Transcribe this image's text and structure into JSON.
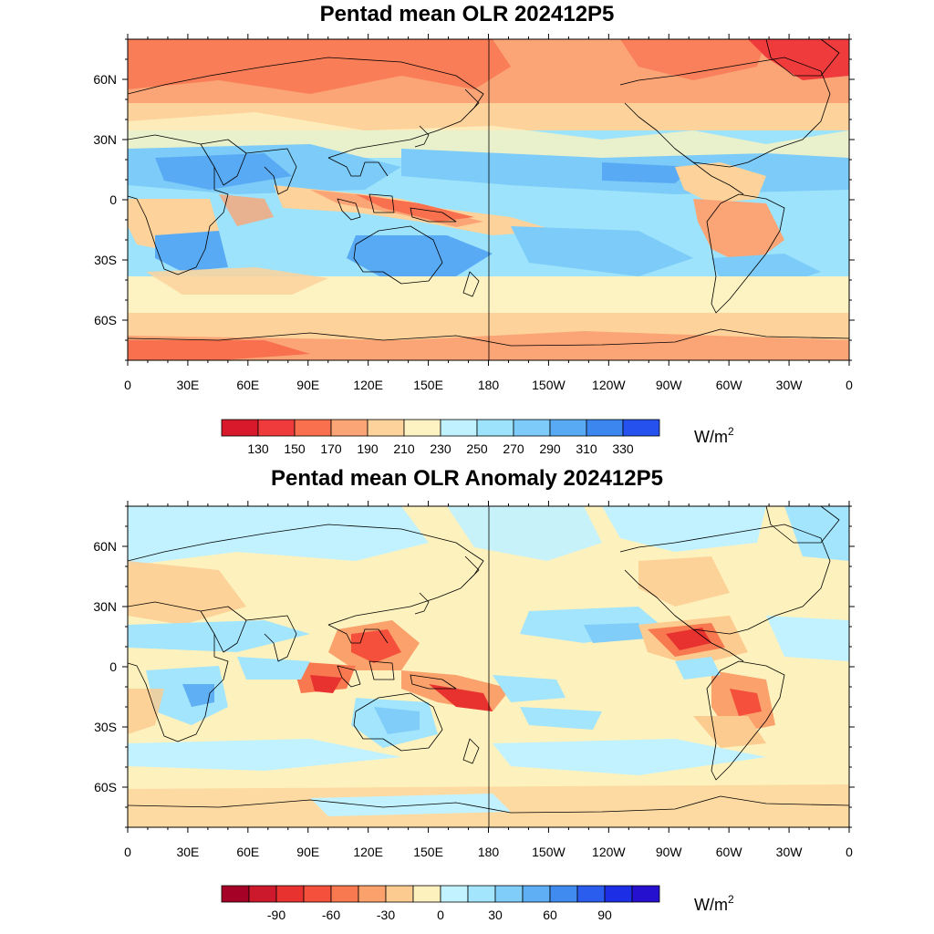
{
  "panels": [
    {
      "id": "olr-mean",
      "title": "Pentad mean OLR 202412P5",
      "lon_ticks": [
        "0",
        "30E",
        "60E",
        "90E",
        "120E",
        "150E",
        "180",
        "150W",
        "120W",
        "90W",
        "60W",
        "30W",
        "0"
      ],
      "lat_ticks": [
        "60N",
        "30N",
        "0",
        "30S",
        "60S"
      ],
      "colorbar": {
        "colors": [
          "#d7192b",
          "#ef3b3b",
          "#f8704e",
          "#fba476",
          "#fdd29b",
          "#fdf2c1",
          "#bff1ff",
          "#9de3fb",
          "#7ccbf8",
          "#59aaf4",
          "#3c86f0",
          "#2552ee"
        ],
        "labels": [
          "130",
          "150",
          "170",
          "190",
          "210",
          "230",
          "250",
          "270",
          "290",
          "310",
          "330"
        ],
        "unit": "W/m",
        "unit_sup": "2"
      }
    },
    {
      "id": "olr-anomaly",
      "title": "Pentad mean OLR Anomaly 202412P5",
      "lon_ticks": [
        "0",
        "30E",
        "60E",
        "90E",
        "120E",
        "150E",
        "180",
        "150W",
        "120W",
        "90W",
        "60W",
        "30W",
        "0"
      ],
      "lat_ticks": [
        "60N",
        "30N",
        "0",
        "30S",
        "60S"
      ],
      "colorbar": {
        "colors": [
          "#a50026",
          "#cc1a2c",
          "#e8322f",
          "#f4503b",
          "#f8794f",
          "#faa16c",
          "#fccb8f",
          "#fdf1bd",
          "#c2f2ff",
          "#a2e5fc",
          "#7fcdf8",
          "#5eaff4",
          "#3f8bf0",
          "#2a5cee",
          "#1d2fe6",
          "#2510d0"
        ],
        "labels": [
          "-90",
          "-60",
          "-30",
          "0",
          "30",
          "60",
          "90"
        ],
        "unit": "W/m",
        "unit_sup": "2"
      }
    }
  ]
}
